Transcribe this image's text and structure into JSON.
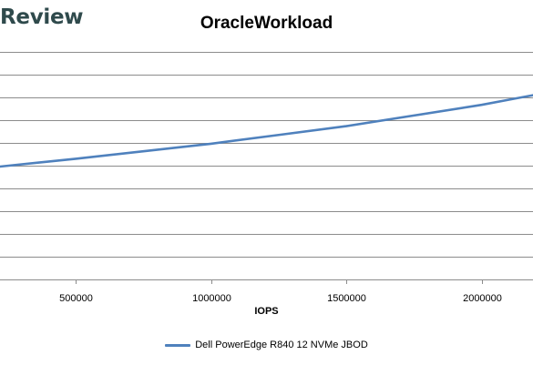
{
  "brand": "Review",
  "chart_data": {
    "type": "line",
    "title": "OracleWorkload",
    "xlabel": "IOPS",
    "ylabel": "",
    "x_ticks": [
      500000,
      1000000,
      1500000,
      2000000
    ],
    "x_tick_labels": [
      "500000",
      "1000000",
      "1500000",
      "2000000"
    ],
    "xlim": [
      220000,
      2190000
    ],
    "grid": true,
    "legend_position": "bottom",
    "series": [
      {
        "name": "Dell PowerEdge R840 12 NVMe JBOD",
        "color": "#4f81bd",
        "x": [
          220000,
          500000,
          1000000,
          1500000,
          2000000,
          2190000
        ],
        "y_relative": [
          0.0,
          0.096,
          0.282,
          0.499,
          0.762,
          0.881
        ]
      }
    ]
  }
}
